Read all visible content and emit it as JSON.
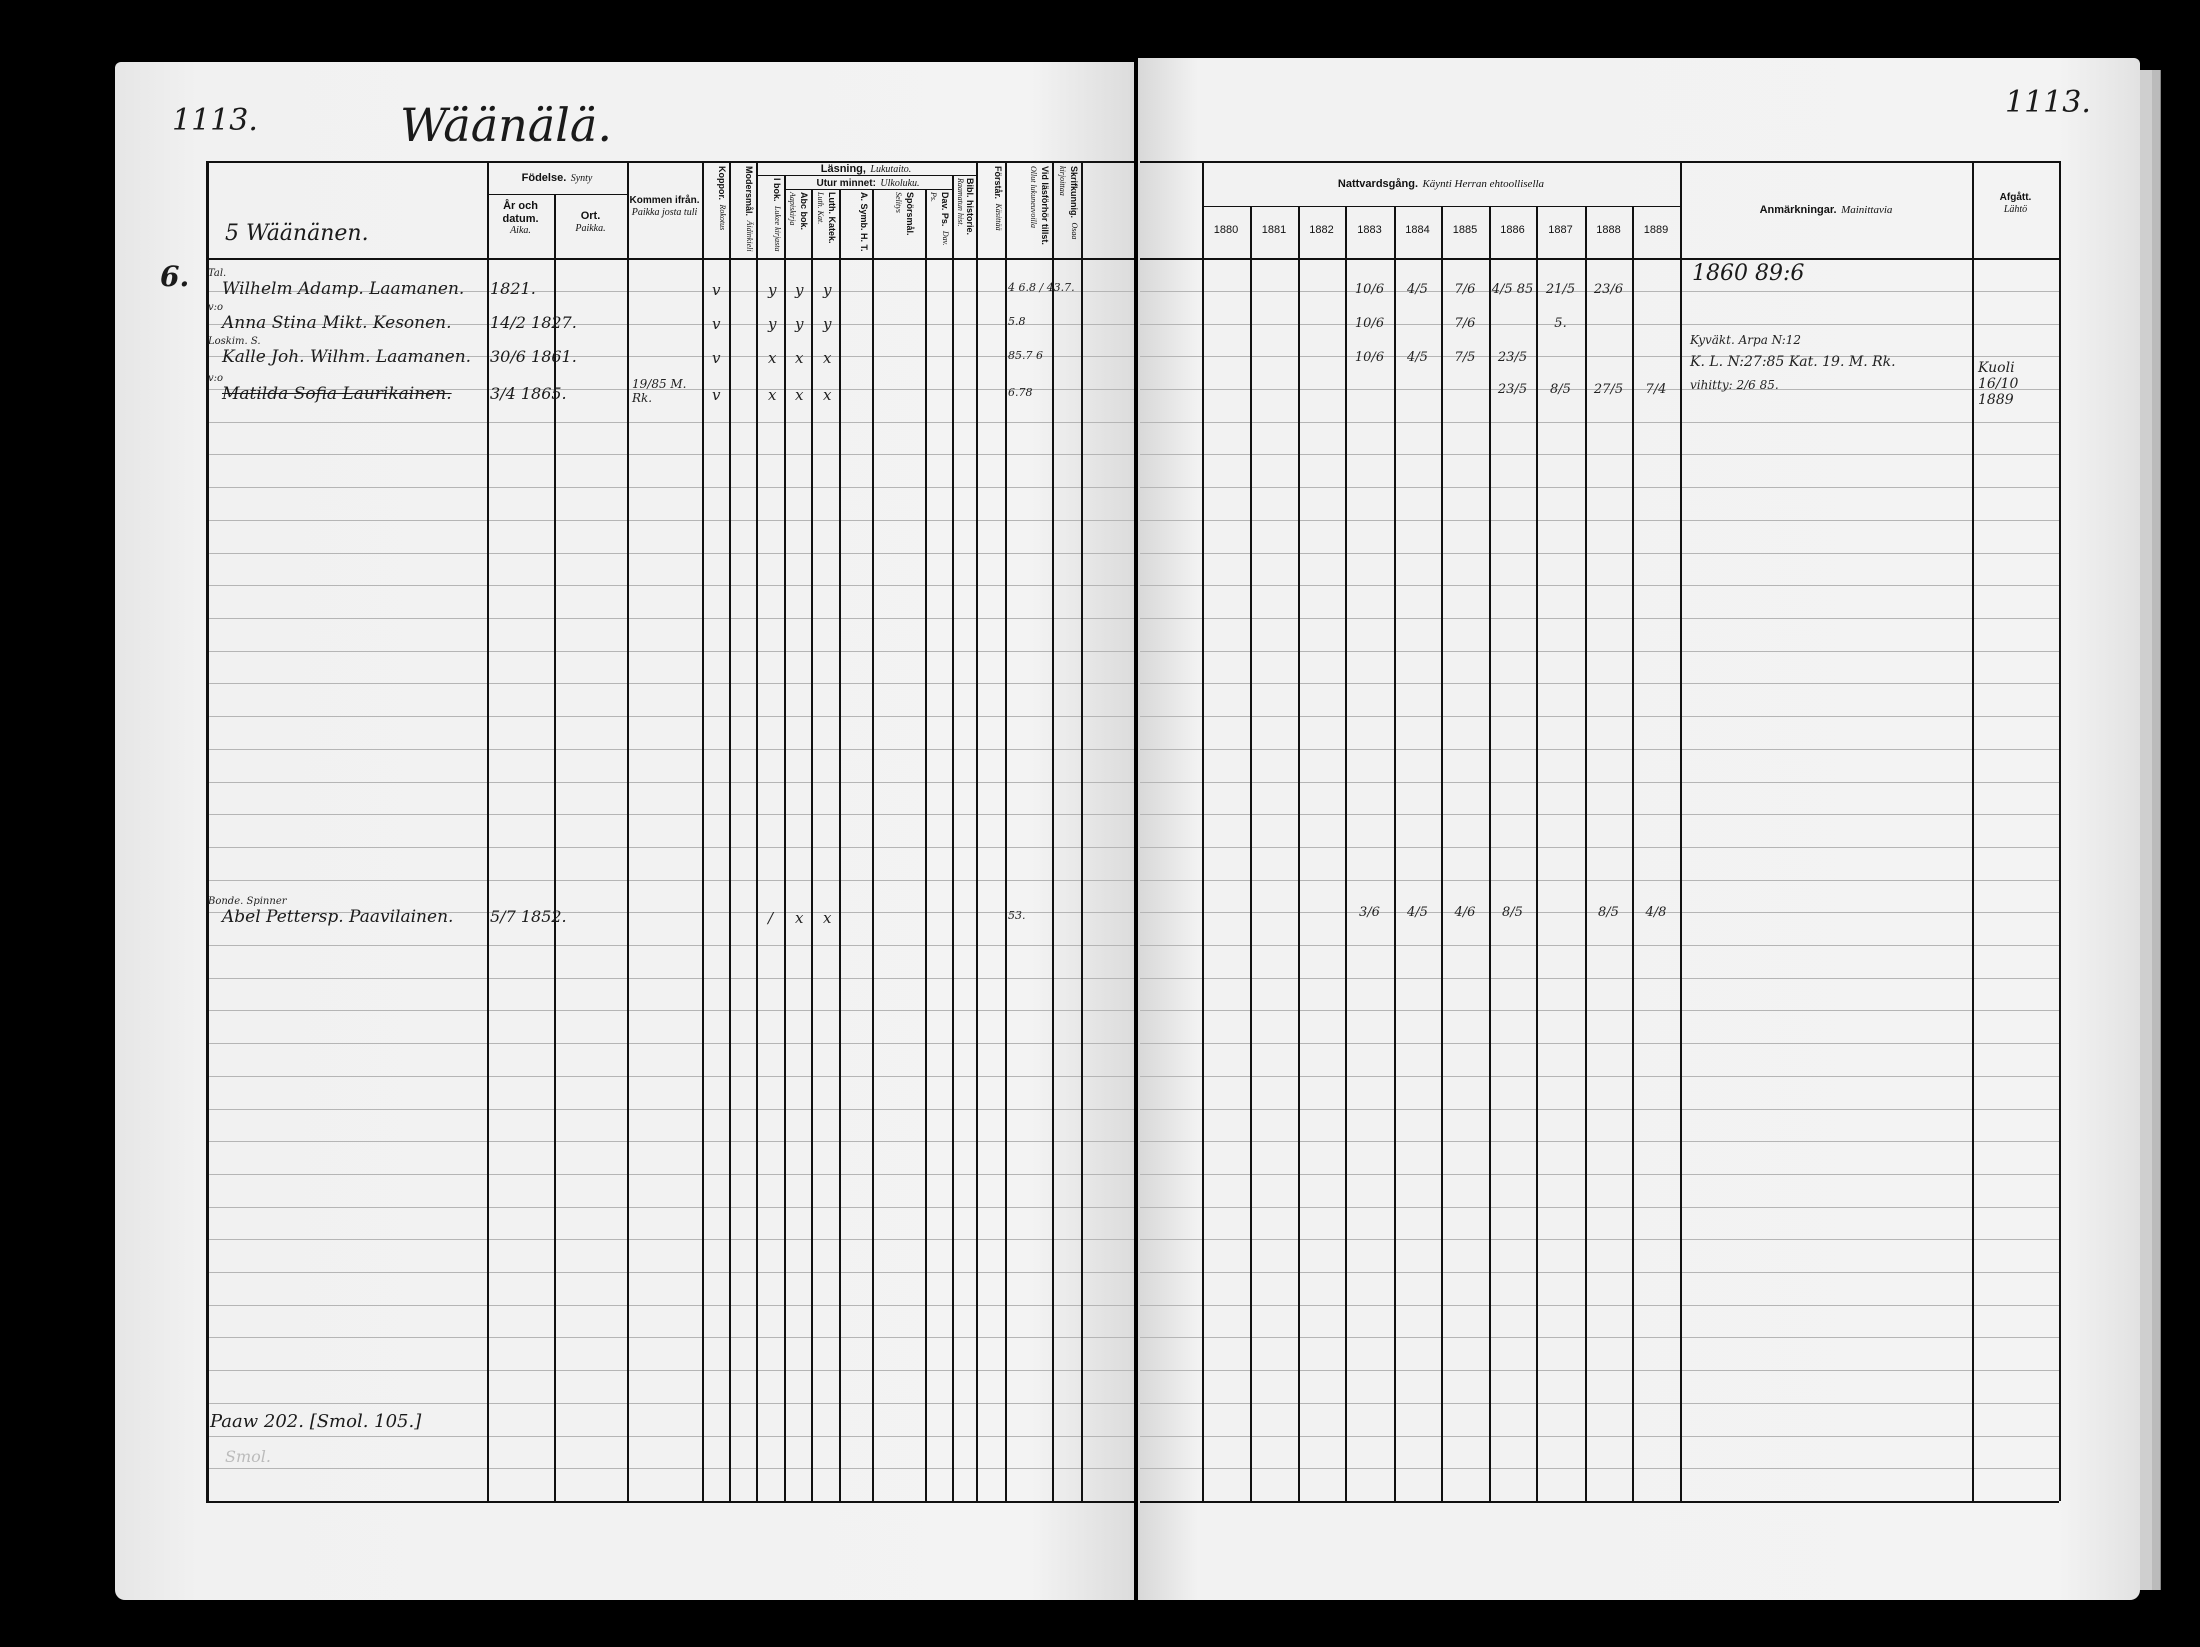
{
  "left_page": {
    "page_number": "1113.",
    "village_title": "Wäänälä.",
    "margin_household_number": "6.",
    "header": {
      "house_name": "5 Wäänänen.",
      "birth_group": {
        "sv": "Födelse.",
        "fi": "Synty"
      },
      "birth_date": {
        "sv": "År och datum.",
        "fi": "Aika."
      },
      "birth_place": {
        "sv": "Ort.",
        "fi": "Paikka."
      },
      "came_from": {
        "sv": "Kommen ifrån.",
        "fi": "Paikka josta tuli"
      },
      "smallpox": {
        "sv": "Koppor.",
        "fi": "Rokotus"
      },
      "mother_tongue": {
        "sv": "Modersmål.",
        "fi": "Äidinkieli"
      },
      "reading_group": {
        "sv": "Läsning,",
        "fi": "Lukutaito."
      },
      "in_book": {
        "sv": "I bok.",
        "fi": "Lukee kirjasta"
      },
      "memory_group": {
        "sv": "Utur minnet:",
        "fi": "Ulkoluku."
      },
      "abc_book": {
        "sv": "Abc bok.",
        "fi": "Aapiskirja"
      },
      "catechism": {
        "sv": "Luth. Katek.",
        "fi": "Luth. Kat."
      },
      "symbols": {
        "sv": "A. Symb. H. T."
      },
      "questions": {
        "sv": "Spörsmål.",
        "fi": "Selitys"
      },
      "psalms": {
        "sv": "Dav. Ps.",
        "fi": "Dav. Ps."
      },
      "bible_history": {
        "sv": "Bibl. historie.",
        "fi": "Raamatun hist."
      },
      "understands": {
        "sv": "Förstår.",
        "fi": "Käsittää"
      },
      "exam_attendance": {
        "sv": "Vid läsförhör tillst.",
        "fi": "Ollut lukuneuvoilla"
      },
      "writing": {
        "sv": "Skrifkunnig.",
        "fi": "Osaa kirjoittaa"
      }
    },
    "rows": [
      {
        "prefix": "Tal.",
        "name": "Wilhelm Adamp. Laamanen.",
        "birth": "1821.",
        "came_from": "",
        "smallpox": "v",
        "marks": [
          "y",
          "y",
          "y"
        ],
        "exam": "4 6.8 / 43.7.",
        "struck": false
      },
      {
        "prefix": "v:o",
        "name": "Anna Stina Mikt. Kesonen.",
        "birth": "14/2 1827.",
        "came_from": "",
        "smallpox": "v",
        "marks": [
          "y",
          "y",
          "y"
        ],
        "exam": "5.8",
        "struck": false
      },
      {
        "prefix": "Loskim. S.",
        "name": "Kalle Joh. Wilhm. Laamanen.",
        "birth": "30/6 1861.",
        "came_from": "",
        "smallpox": "v",
        "marks": [
          "x",
          "x",
          "x"
        ],
        "exam": "85.7 6",
        "struck": false
      },
      {
        "prefix": "v:o",
        "name": "Matilda Sofia Laurikainen.",
        "birth": "3/4 1865.",
        "came_from": "19/85 M. Rk.",
        "smallpox": "v",
        "marks": [
          "x",
          "x",
          "x"
        ],
        "exam": "6.78",
        "struck": true
      },
      {
        "prefix": "Bonde. Spinner",
        "name": "Abel Pettersp. Paavilainen.",
        "birth": "5/7 1852.",
        "came_from": "",
        "smallpox": "",
        "marks": [
          "/",
          "x",
          "x"
        ],
        "exam": "53.",
        "struck": false
      }
    ],
    "footer_note": "Paaw 202. [Smol. 105.]",
    "faint_note": "Smol."
  },
  "right_page": {
    "page_number": "1113.",
    "header": {
      "communion_group": {
        "sv": "Nattvardsgång.",
        "fi": "Käynti Herran ehtoollisella"
      },
      "years": [
        "1880",
        "1881",
        "1882",
        "1883",
        "1884",
        "1885",
        "1886",
        "1887",
        "1888",
        "1889"
      ],
      "remarks": {
        "sv": "Anmärkningar.",
        "fi": "Mainittavia"
      },
      "departed": {
        "sv": "Afgått.",
        "fi": "Lähtö"
      }
    },
    "communion_rows": [
      {
        "1883": "10/6",
        "1884": "4/5",
        "1885": "7/6",
        "1886": "4/5 85",
        "1887": "21/5",
        "1888": "23/6"
      },
      {
        "1883": "10/6",
        "1885": "7/6",
        "1887": "5."
      },
      {
        "1883": "10/6",
        "1884": "4/5",
        "1885": "7/5",
        "1886": "23/5"
      },
      {
        "1886": "23/5",
        "1887": "8/5",
        "1888": "27/5",
        "1889": "7/4"
      },
      {
        "1883": "3/6",
        "1884": "4/5",
        "1885": "4/6",
        "1886": "8/5",
        "1888": "8/5",
        "1889": "4/8"
      }
    ],
    "remarks": [
      "1860 89:6",
      "Kyväkt. Arpa N:12",
      "K. L. N:27:85 Kat. 19. M. Rk.",
      "vihitty: 2/6 85."
    ],
    "departed": "Kuoli 16/10 1889"
  }
}
